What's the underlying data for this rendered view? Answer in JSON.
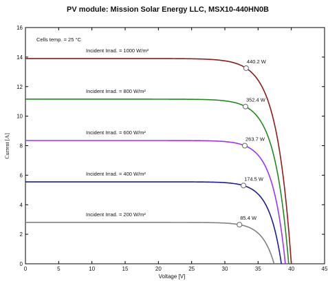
{
  "chart_data": {
    "type": "line",
    "title": "PV module: Mission Solar Energy LLC, MSX10-440HN0B",
    "xlabel": "Voltage [V]",
    "ylabel": "Current [A]",
    "xlim": [
      0,
      45
    ],
    "ylim": [
      0,
      16
    ],
    "x_ticks": [
      "0",
      "5",
      "10",
      "15",
      "20",
      "25",
      "30",
      "35",
      "40",
      "45"
    ],
    "y_ticks": [
      "0",
      "2",
      "4",
      "6",
      "8",
      "10",
      "12",
      "14",
      "16"
    ],
    "grid": false,
    "legend": "none",
    "annotation": "Cells temp. = 25 °C",
    "series": [
      {
        "name": "Incident Irrad. = 1000 W/m²",
        "color": "#8b1a1a",
        "isc": 13.9,
        "voc": 40.0,
        "vmp": 33.2,
        "imp": 13.25,
        "pmax_label": "440.2 W"
      },
      {
        "name": "Incident Irrad. = 800 W/m²",
        "color": "#1e8a1e",
        "isc": 11.15,
        "voc": 39.6,
        "vmp": 33.1,
        "imp": 10.65,
        "pmax_label": "352.4 W"
      },
      {
        "name": "Incident Irrad. = 600 W/m²",
        "color": "#9b30ff",
        "isc": 8.35,
        "voc": 39.1,
        "vmp": 33.0,
        "imp": 8.0,
        "pmax_label": "263.7 W"
      },
      {
        "name": "Incident Irrad. = 400 W/m²",
        "color": "#1a1a9b",
        "isc": 5.55,
        "voc": 38.5,
        "vmp": 32.8,
        "imp": 5.3,
        "pmax_label": "174.5 W"
      },
      {
        "name": "Incident Irrad. = 200 W/m²",
        "color": "#808080",
        "isc": 2.8,
        "voc": 37.4,
        "vmp": 32.2,
        "imp": 2.65,
        "pmax_label": "85.4 W"
      }
    ]
  }
}
